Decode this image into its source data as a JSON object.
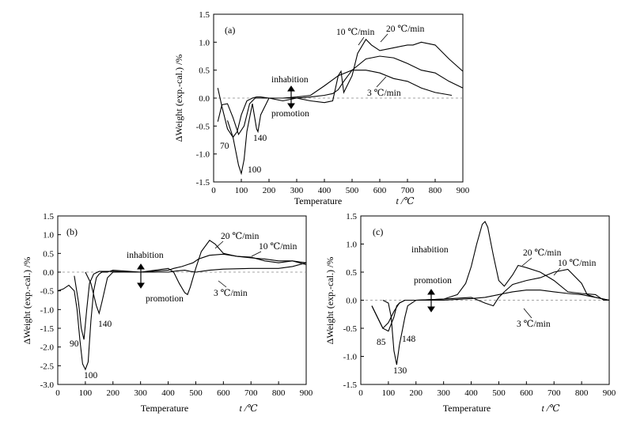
{
  "chart_data": [
    {
      "id": "a",
      "type": "line",
      "panel_label": "(a)",
      "xlabel": "Temperature",
      "xunit": "t /℃",
      "ylabel": "ΔWeight (exp.-cal.) /%",
      "xlim": [
        0,
        900
      ],
      "ylim": [
        -1.5,
        1.5
      ],
      "xticks": [
        0,
        100,
        200,
        300,
        400,
        500,
        600,
        700,
        800,
        900
      ],
      "yticks": [
        -1.5,
        -1.0,
        -0.5,
        0.0,
        0.5,
        1.0,
        1.5
      ],
      "series": [
        {
          "name": "3 ℃/min",
          "x": [
            15,
            30,
            50,
            70,
            90,
            110,
            130,
            150,
            170,
            200,
            250,
            300,
            350,
            400,
            450,
            500,
            550,
            600,
            650,
            700,
            750,
            800,
            860
          ],
          "y": [
            -0.42,
            -0.12,
            -0.1,
            -0.35,
            -0.65,
            -0.5,
            -0.1,
            0,
            0,
            0,
            0,
            0.02,
            0.05,
            0.22,
            0.4,
            0.5,
            0.5,
            0.45,
            0.35,
            0.3,
            0.18,
            0.1,
            0.05
          ]
        },
        {
          "name": "10 ℃/min",
          "x": [
            15,
            30,
            50,
            70,
            85,
            100,
            120,
            140,
            155,
            170,
            200,
            250,
            300,
            350,
            400,
            430,
            450,
            470,
            500,
            550,
            600,
            650,
            700,
            750,
            800,
            850,
            900
          ],
          "y": [
            0.18,
            -0.15,
            -0.55,
            -0.7,
            -0.6,
            -0.3,
            -0.05,
            0,
            0.02,
            0.02,
            0.0,
            0.0,
            0.0,
            0.02,
            0.05,
            0.08,
            0.15,
            0.3,
            0.5,
            0.7,
            0.75,
            0.72,
            0.62,
            0.5,
            0.45,
            0.3,
            0.18
          ]
        },
        {
          "name": "20 ℃/min",
          "x": [
            50,
            70,
            90,
            100,
            110,
            120,
            140,
            155,
            160,
            170,
            200,
            250,
            300,
            350,
            400,
            430,
            450,
            460,
            470,
            500,
            520,
            550,
            570,
            600,
            650,
            700,
            720,
            750,
            800,
            850,
            900
          ],
          "y": [
            -0.4,
            -0.7,
            -1.2,
            -1.35,
            -1.1,
            -0.6,
            -0.1,
            -0.55,
            -0.6,
            -0.3,
            0.0,
            -0.05,
            0.0,
            -0.05,
            -0.08,
            -0.05,
            0.4,
            0.48,
            0.1,
            0.4,
            0.8,
            1.05,
            0.95,
            0.85,
            0.9,
            0.95,
            0.95,
            1.0,
            0.95,
            0.7,
            0.48
          ]
        }
      ],
      "annotations": [
        "70",
        "100",
        "140",
        "inhabition",
        "promotion",
        "10 ℃/min",
        "20 ℃/min",
        "3 ℃/min"
      ]
    },
    {
      "id": "b",
      "type": "line",
      "panel_label": "(b)",
      "xlabel": "Temperature",
      "xunit": "t /℃",
      "ylabel": "ΔWeight (exp.-cal.) /%",
      "xlim": [
        0,
        900
      ],
      "ylim": [
        -3.0,
        1.5
      ],
      "xticks": [
        0,
        100,
        200,
        300,
        400,
        500,
        600,
        700,
        800,
        900
      ],
      "yticks": [
        -3.0,
        -2.5,
        -2.0,
        -1.5,
        -1.0,
        -0.5,
        0.0,
        0.5,
        1.0,
        1.5
      ],
      "series": [
        {
          "name": "3 ℃/min",
          "x": [
            60,
            75,
            85,
            95,
            105,
            115,
            130,
            150,
            200,
            300,
            400,
            430,
            460,
            480,
            500,
            550,
            600,
            700,
            800,
            850,
            900
          ],
          "y": [
            -0.1,
            -0.8,
            -1.5,
            -1.8,
            -1.0,
            -0.3,
            -0.05,
            0.02,
            0.02,
            0.0,
            0.0,
            0.03,
            0.05,
            0.02,
            0.0,
            0.05,
            0.08,
            0.1,
            0.1,
            0.15,
            0.25
          ]
        },
        {
          "name": "10 ℃/min",
          "x": [
            0,
            20,
            40,
            60,
            70,
            80,
            90,
            100,
            110,
            120,
            130,
            140,
            150,
            160,
            180,
            200,
            300,
            400,
            420,
            450,
            470,
            490,
            510,
            550,
            600,
            650,
            700,
            750,
            800,
            850,
            900
          ],
          "y": [
            -0.5,
            -0.45,
            -0.35,
            -0.5,
            -1.0,
            -1.8,
            -2.45,
            -2.6,
            -2.4,
            -1.3,
            -0.5,
            -0.15,
            -0.05,
            0.0,
            0.0,
            0.05,
            0.0,
            0.05,
            0.1,
            0.15,
            0.2,
            0.25,
            0.35,
            0.45,
            0.48,
            0.42,
            0.38,
            0.35,
            0.3,
            0.3,
            0.25
          ]
        },
        {
          "name": "20 ℃/min",
          "x": [
            100,
            120,
            140,
            150,
            160,
            180,
            200,
            300,
            400,
            420,
            440,
            460,
            470,
            480,
            500,
            520,
            550,
            570,
            600,
            650,
            700,
            750,
            800,
            850,
            900
          ],
          "y": [
            0.0,
            -0.3,
            -0.9,
            -1.1,
            -0.8,
            -0.15,
            0.0,
            0.0,
            0.1,
            0.0,
            -0.3,
            -0.55,
            -0.6,
            -0.4,
            0.1,
            0.55,
            0.85,
            0.75,
            0.5,
            0.42,
            0.4,
            0.3,
            0.25,
            0.3,
            0.2
          ]
        }
      ],
      "annotations": [
        "90",
        "100",
        "140",
        "inhabition",
        "promotion",
        "20 ℃/min",
        "10 ℃/min",
        "3 ℃/min"
      ]
    },
    {
      "id": "c",
      "type": "line",
      "panel_label": "(c)",
      "xlabel": "Temperature",
      "xunit": "t /℃",
      "ylabel": "ΔWeight (exp.-cal.) /%",
      "xlim": [
        0,
        900
      ],
      "ylim": [
        -1.5,
        1.5
      ],
      "xticks": [
        0,
        100,
        200,
        300,
        400,
        500,
        600,
        700,
        800,
        900
      ],
      "yticks": [
        -1.5,
        -1.0,
        -0.5,
        0.0,
        0.5,
        1.0,
        1.5
      ],
      "series": [
        {
          "name": "3 ℃/min",
          "x": [
            40,
            60,
            80,
            100,
            120,
            140,
            160,
            180,
            200,
            300,
            400,
            450,
            500,
            550,
            600,
            650,
            700,
            750,
            800,
            850,
            900
          ],
          "y": [
            -0.1,
            -0.3,
            -0.5,
            -0.4,
            -0.2,
            -0.05,
            0.0,
            0.0,
            0.0,
            0.0,
            0.03,
            0.05,
            0.1,
            0.15,
            0.18,
            0.18,
            0.15,
            0.12,
            0.1,
            0.05,
            0.0
          ]
        },
        {
          "name": "10 ℃/min",
          "x": [
            40,
            60,
            80,
            100,
            120,
            130,
            140,
            160,
            180,
            200,
            300,
            400,
            450,
            480,
            500,
            520,
            550,
            600,
            650,
            700,
            750,
            800,
            820,
            850,
            900
          ],
          "y": [
            -0.1,
            -0.3,
            -0.5,
            -0.55,
            -0.3,
            -0.1,
            -0.05,
            0.0,
            0.0,
            0.0,
            0.02,
            0.05,
            -0.05,
            -0.1,
            0.05,
            0.15,
            0.28,
            0.35,
            0.4,
            0.5,
            0.55,
            0.3,
            0.1,
            0.05,
            0.0
          ]
        },
        {
          "name": "20 ℃/min",
          "x": [
            80,
            100,
            110,
            120,
            130,
            140,
            150,
            160,
            170,
            200,
            300,
            350,
            380,
            400,
            420,
            440,
            450,
            460,
            480,
            500,
            520,
            550,
            570,
            600,
            650,
            700,
            750,
            800,
            850,
            880,
            900
          ],
          "y": [
            0.0,
            -0.05,
            -0.3,
            -0.9,
            -1.15,
            -0.8,
            -0.55,
            -0.3,
            -0.1,
            0.0,
            0.02,
            0.1,
            0.3,
            0.6,
            1.0,
            1.35,
            1.4,
            1.3,
            0.8,
            0.35,
            0.25,
            0.45,
            0.62,
            0.58,
            0.5,
            0.35,
            0.15,
            0.12,
            0.1,
            0.0,
            0.0
          ]
        }
      ],
      "annotations": [
        "85",
        "148",
        "130",
        "inhabition",
        "promotion",
        "20 ℃/min",
        "10 ℃/min",
        "3 ℃/min"
      ]
    }
  ]
}
